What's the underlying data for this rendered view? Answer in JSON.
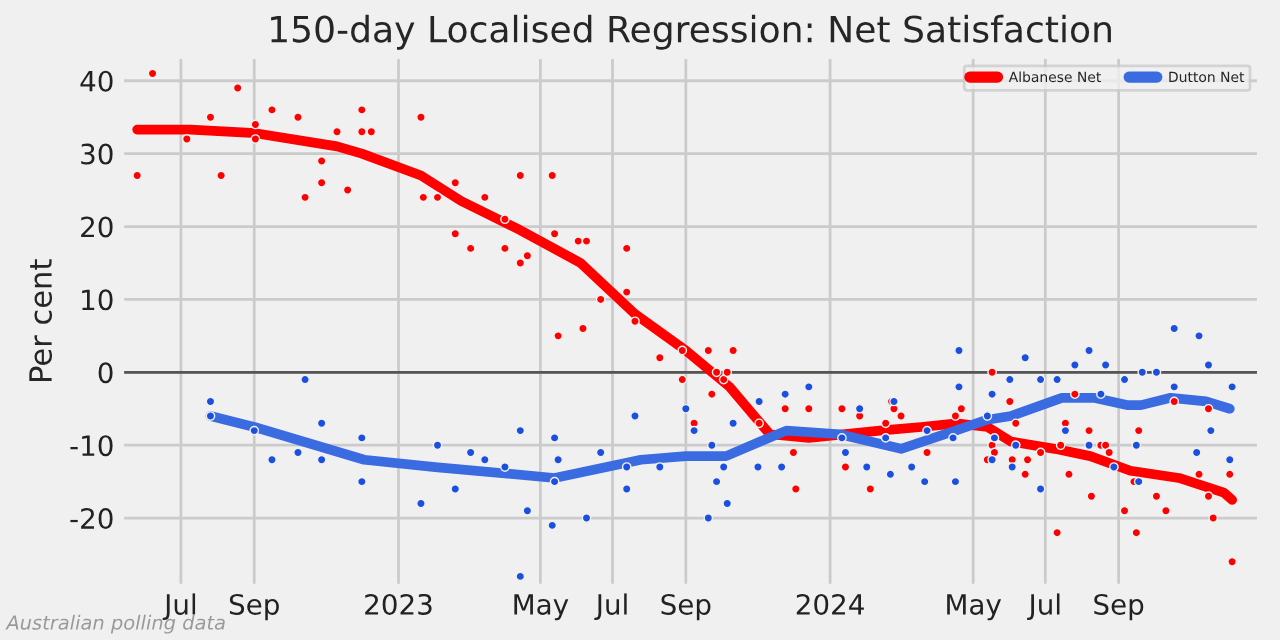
{
  "chart_data": {
    "type": "line",
    "title": "150-day Localised Regression: Net Satisfaction",
    "ylabel": "Per cent",
    "annotations": [
      "Australian polling data"
    ],
    "xlim": [
      "2022-05-14",
      "2024-12-27"
    ],
    "ylim": [
      -29,
      43
    ],
    "yticks": [
      -20,
      -10,
      0,
      10,
      20,
      30,
      40
    ],
    "xticks": [
      {
        "value": "2022-07-01",
        "label": "Jul"
      },
      {
        "value": "2022-09-01",
        "label": "Sep"
      },
      {
        "value": "2023-01-01",
        "label": "2023"
      },
      {
        "value": "2023-05-01",
        "label": "May"
      },
      {
        "value": "2023-07-01",
        "label": "Jul"
      },
      {
        "value": "2023-09-01",
        "label": "Sep"
      },
      {
        "value": "2024-01-01",
        "label": "2024"
      },
      {
        "value": "2024-05-01",
        "label": "May"
      },
      {
        "value": "2024-07-01",
        "label": "Jul"
      },
      {
        "value": "2024-09-01",
        "label": "Sep"
      }
    ],
    "grid": true,
    "legend": "top right",
    "ref_lines": [
      {
        "axis": "y",
        "value": 0,
        "label": null,
        "color": "#555555"
      }
    ],
    "series": [
      {
        "type": "scatter",
        "color": "#ff0000",
        "marker": "circle",
        "x": [
          "2022-05-25",
          "2022-06-07",
          "2022-07-06",
          "2022-07-26",
          "2022-08-04",
          "2022-08-18",
          "2022-09-02",
          "2022-09-02",
          "2022-09-16",
          "2022-10-08",
          "2022-10-14",
          "2022-10-28",
          "2022-10-28",
          "2022-11-10",
          "2022-11-19",
          "2022-12-01",
          "2022-12-01",
          "2022-12-09",
          "2023-01-20",
          "2023-01-22",
          "2023-02-03",
          "2023-02-18",
          "2023-02-18",
          "2023-03-03",
          "2023-03-15",
          "2023-04-01",
          "2023-04-01",
          "2023-04-14",
          "2023-04-14",
          "2023-04-20",
          "2023-05-11",
          "2023-05-13",
          "2023-05-16",
          "2023-06-02",
          "2023-06-09",
          "2023-06-06",
          "2023-06-21",
          "2023-07-13",
          "2023-07-13",
          "2023-07-20",
          "2023-08-10",
          "2023-08-29",
          "2023-08-29",
          "2023-09-08",
          "2023-09-20",
          "2023-09-27",
          "2023-10-03",
          "2023-09-23",
          "2023-10-06",
          "2023-10-11",
          "2023-11-02",
          "2023-11-24",
          "2023-12-01",
          "2023-12-03",
          "2023-12-14",
          "2024-01-11",
          "2024-01-14",
          "2024-01-26",
          "2024-02-04",
          "2024-02-17",
          "2024-02-22",
          "2024-02-24",
          "2024-03-01",
          "2024-03-23",
          "2024-04-16",
          "2024-04-21",
          "2024-05-13",
          "2024-05-17",
          "2024-05-17",
          "2024-05-19",
          "2024-06-01",
          "2024-06-03",
          "2024-06-06",
          "2024-06-14",
          "2024-06-16",
          "2024-06-27",
          "2024-07-11",
          "2024-07-14",
          "2024-07-18",
          "2024-07-21",
          "2024-07-26",
          "2024-08-07",
          "2024-08-09",
          "2024-08-17",
          "2024-08-21",
          "2024-08-24",
          "2024-09-06",
          "2024-09-16",
          "2024-09-14",
          "2024-09-18",
          "2024-10-03",
          "2024-10-11",
          "2024-10-18",
          "2024-11-08",
          "2024-11-16",
          "2024-11-16",
          "2024-11-20",
          "2024-12-04",
          "2024-12-06"
        ],
        "values": [
          27,
          41,
          32,
          35,
          27,
          39,
          34,
          32,
          36,
          35,
          24,
          29,
          26,
          33,
          25,
          36,
          33,
          33,
          35,
          24,
          24,
          26,
          19,
          17,
          24,
          21,
          17,
          27,
          15,
          16,
          27,
          19,
          5,
          18,
          18,
          6,
          10,
          17,
          11,
          7,
          2,
          3,
          -1,
          -7,
          3,
          0,
          -1,
          -3,
          0,
          3,
          -7,
          -5,
          -11,
          -16,
          -5,
          -5,
          -13,
          -6,
          -16,
          -7,
          -4,
          -5,
          -6,
          -11,
          -6,
          -5,
          -12,
          0,
          -10,
          -11,
          -4,
          -12,
          -7,
          -14,
          -12,
          -11,
          -22,
          -10,
          -7,
          -14,
          -3,
          -8,
          -17,
          -10,
          -10,
          -11,
          -19,
          -22,
          -15,
          -8,
          -17,
          -19,
          -4,
          -14,
          -5,
          -17,
          -20,
          -14,
          -26
        ]
      },
      {
        "type": "scatter",
        "color": "#1a4fe0",
        "marker": "circle",
        "x": [
          "2022-07-26",
          "2022-07-26",
          "2022-09-01",
          "2022-09-16",
          "2022-10-08",
          "2022-10-14",
          "2022-10-28",
          "2022-10-28",
          "2022-12-01",
          "2022-12-01",
          "2023-01-20",
          "2023-02-03",
          "2023-02-18",
          "2023-03-03",
          "2023-03-15",
          "2023-04-01",
          "2023-04-14",
          "2023-04-14",
          "2023-04-20",
          "2023-05-11",
          "2023-05-13",
          "2023-05-13",
          "2023-05-16",
          "2023-06-09",
          "2023-06-21",
          "2023-07-13",
          "2023-07-13",
          "2023-07-20",
          "2023-08-10",
          "2023-09-01",
          "2023-09-08",
          "2023-09-20",
          "2023-09-23",
          "2023-09-27",
          "2023-10-03",
          "2023-10-06",
          "2023-10-11",
          "2023-11-02",
          "2023-11-01",
          "2023-11-21",
          "2023-11-24",
          "2023-12-14",
          "2024-01-11",
          "2024-01-14",
          "2024-01-26",
          "2024-02-01",
          "2024-02-17",
          "2024-02-21",
          "2024-02-24",
          "2024-03-10",
          "2024-03-21",
          "2024-03-23",
          "2024-04-14",
          "2024-04-16",
          "2024-04-19",
          "2024-04-19",
          "2024-05-13",
          "2024-05-17",
          "2024-05-19",
          "2024-05-17",
          "2024-06-01",
          "2024-06-03",
          "2024-06-06",
          "2024-06-14",
          "2024-06-27",
          "2024-06-27",
          "2024-07-11",
          "2024-07-18",
          "2024-07-26",
          "2024-08-07",
          "2024-08-07",
          "2024-08-17",
          "2024-08-21",
          "2024-08-28",
          "2024-09-06",
          "2024-09-16",
          "2024-09-18",
          "2024-09-21",
          "2024-10-03",
          "2024-10-18",
          "2024-10-18",
          "2024-11-08",
          "2024-11-06",
          "2024-11-16",
          "2024-11-18",
          "2024-12-04",
          "2024-12-06"
        ],
        "values": [
          -4,
          -6,
          -8,
          -12,
          -11,
          -1,
          -7,
          -12,
          -9,
          -15,
          -18,
          -10,
          -16,
          -11,
          -12,
          -13,
          -8,
          -28,
          -19,
          -21,
          -9,
          -15,
          -12,
          -20,
          -11,
          -13,
          -16,
          -6,
          -13,
          -5,
          -8,
          -20,
          -10,
          -15,
          -13,
          -18,
          -7,
          -4,
          -13,
          -13,
          -3,
          -2,
          -9,
          -11,
          -5,
          -13,
          -9,
          -14,
          -4,
          -13,
          -15,
          -8,
          -9,
          -15,
          -2,
          3,
          -6,
          -3,
          -9,
          -12,
          -1,
          -13,
          -10,
          2,
          -1,
          -16,
          -1,
          -8,
          1,
          3,
          -10,
          -3,
          1,
          -13,
          -1,
          -10,
          -15,
          0,
          0,
          6,
          -2,
          5,
          -11,
          1,
          -8,
          -12,
          -2
        ]
      },
      {
        "name": "Albanese Net",
        "color": "#ff0000",
        "x": [
          "2022-05-25",
          "2022-07-09",
          "2022-09-02",
          "2022-11-10",
          "2022-12-01",
          "2023-01-20",
          "2023-02-23",
          "2023-04-14",
          "2023-06-04",
          "2023-07-20",
          "2023-09-01",
          "2023-10-08",
          "2023-11-11",
          "2023-12-14",
          "2024-02-12",
          "2024-03-18",
          "2024-04-17",
          "2024-05-13",
          "2024-06-02",
          "2024-07-09",
          "2024-08-08",
          "2024-09-11",
          "2024-10-22",
          "2024-11-29",
          "2024-12-06"
        ],
        "values": [
          33.3,
          33.3,
          32.8,
          31,
          30,
          27,
          23.5,
          19.5,
          15,
          8,
          3,
          -2,
          -8.5,
          -9,
          -8,
          -7.5,
          -7,
          -7.5,
          -9.5,
          -10.5,
          -11.5,
          -13.5,
          -14.5,
          -16.5,
          -17.5
        ]
      },
      {
        "name": "Dutton Net",
        "color": "#3a6be0",
        "x": [
          "2022-07-26",
          "2022-09-01",
          "2022-12-03",
          "2023-02-01",
          "2023-05-13",
          "2023-07-25",
          "2023-09-01",
          "2023-10-05",
          "2023-11-03",
          "2023-11-25",
          "2024-01-09",
          "2024-03-01",
          "2024-04-16",
          "2024-05-13",
          "2024-06-02",
          "2024-07-15",
          "2024-08-11",
          "2024-09-08",
          "2024-09-20",
          "2024-10-15",
          "2024-11-14",
          "2024-12-04"
        ],
        "values": [
          -6,
          -7.5,
          -12,
          -13,
          -14.5,
          -12,
          -11.5,
          -11.5,
          -9.5,
          -8,
          -8.5,
          -10.5,
          -8,
          -6.5,
          -6,
          -3.5,
          -3.5,
          -4.5,
          -4.5,
          -3.5,
          -4,
          -5
        ]
      }
    ]
  }
}
